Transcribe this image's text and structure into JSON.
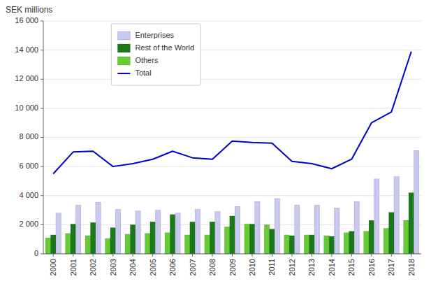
{
  "chart_data": {
    "type": "bar",
    "y_label": "SEK millions",
    "categories": [
      "2000",
      "2001",
      "2002",
      "2003",
      "2004",
      "2005",
      "2006",
      "2007",
      "2008",
      "2009",
      "2010",
      "2011",
      "2012",
      "2013",
      "2014",
      "2015",
      "2016",
      "2017",
      "2018"
    ],
    "series": [
      {
        "name": "Others",
        "color": "#66cc33",
        "values": [
          1100,
          1400,
          1250,
          1050,
          1350,
          1400,
          1450,
          1300,
          1300,
          1850,
          2050,
          2000,
          1300,
          1300,
          1250,
          1450,
          1550,
          1750,
          2300
        ]
      },
      {
        "name": "Rest of the World",
        "color": "#1a7a1a",
        "values": [
          1300,
          2050,
          2150,
          1800,
          2000,
          2200,
          2700,
          2200,
          2200,
          2600,
          2050,
          1700,
          1250,
          1300,
          1200,
          1550,
          2300,
          2850,
          4200
        ]
      },
      {
        "name": "Enterprises",
        "color": "#c8c8f0",
        "values": [
          2800,
          3350,
          3550,
          3050,
          2950,
          3000,
          2800,
          3050,
          2900,
          3250,
          3600,
          3800,
          3350,
          3350,
          3150,
          3600,
          5150,
          5300,
          7100
        ]
      },
      {
        "name": "Total",
        "type": "line",
        "color": "#0000cc",
        "values": [
          5500,
          7000,
          7050,
          6000,
          6200,
          6500,
          7050,
          6600,
          6500,
          7750,
          7650,
          7600,
          6350,
          6200,
          5850,
          6500,
          9000,
          9750,
          13900
        ]
      }
    ],
    "ylim": [
      0,
      16000
    ],
    "yticks": [
      0,
      {
        "value": 2000,
        "label": "2 000"
      },
      {
        "value": 4000,
        "label": "4 000"
      },
      {
        "value": 6000,
        "label": "6 000"
      },
      {
        "value": 8000,
        "label": "8 000"
      },
      {
        "value": 10000,
        "label": "10 000"
      },
      {
        "value": 12000,
        "label": "12 000"
      },
      {
        "value": 14000,
        "label": "14 000"
      },
      {
        "value": 16000,
        "label": "16 000"
      }
    ],
    "grid": true,
    "legend": "upper left"
  }
}
